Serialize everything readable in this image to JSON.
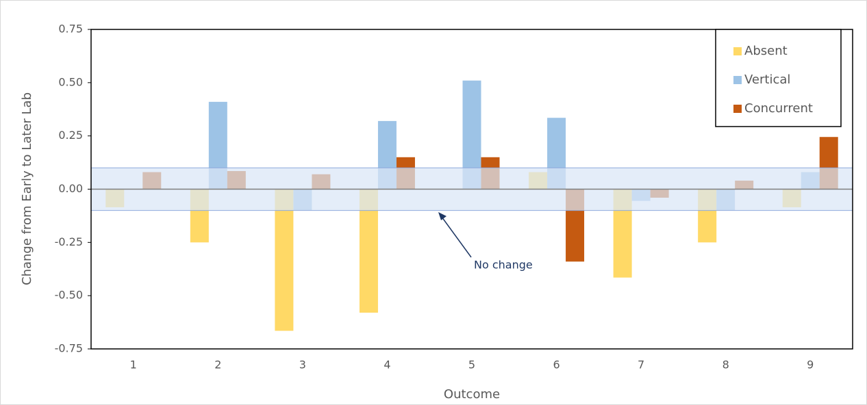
{
  "chart_data": {
    "type": "bar",
    "categories": [
      "1",
      "2",
      "3",
      "4",
      "5",
      "6",
      "7",
      "8",
      "9"
    ],
    "series": [
      {
        "name": "Absent",
        "color": "#ffd966",
        "values": [
          -0.085,
          -0.25,
          -0.665,
          -0.58,
          0,
          0.08,
          -0.415,
          -0.25,
          -0.085
        ]
      },
      {
        "name": "Vertical",
        "color": "#9dc3e6",
        "values": [
          0,
          0.41,
          -0.1,
          0.32,
          0.51,
          0.335,
          -0.055,
          -0.1,
          0.08
        ]
      },
      {
        "name": "Concurrent",
        "color": "#c55a11",
        "values": [
          0.08,
          0.085,
          0.07,
          0.15,
          0.15,
          -0.34,
          -0.04,
          0.04,
          0.245
        ]
      }
    ],
    "ylim": [
      -0.75,
      0.75
    ],
    "yticks": [
      {
        "value": -0.75,
        "label": "-0.75"
      },
      {
        "value": -0.5,
        "label": "-0.50"
      },
      {
        "value": -0.25,
        "label": "-0.25"
      },
      {
        "value": 0,
        "label": "0.00"
      },
      {
        "value": 0.25,
        "label": "0.25"
      },
      {
        "value": 0.5,
        "label": "0.50"
      },
      {
        "value": 0.75,
        "label": "0.75"
      }
    ],
    "ylabel": "Change from Early to Later Lab",
    "xlabel": "Outcome",
    "band": [
      -0.1,
      0.1
    ],
    "annotation": "No change",
    "legend": "upper right"
  }
}
